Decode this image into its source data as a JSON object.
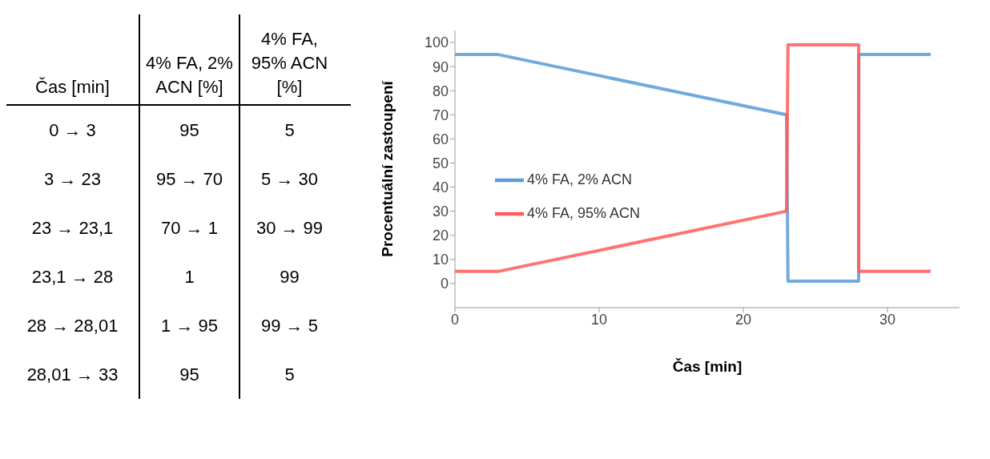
{
  "chart_data": {
    "type": "line",
    "xlabel": "Čas [min]",
    "ylabel": "Procentuální zastoupení",
    "x": [
      0,
      3,
      23,
      23.1,
      28,
      28.01,
      33
    ],
    "series": [
      {
        "name": "4% FA, 2% ACN",
        "color": "#5b9bd5",
        "values": [
          95,
          95,
          70,
          1,
          1,
          95,
          95
        ]
      },
      {
        "name": "4% FA, 95% ACN",
        "color": "#ff5b5b",
        "values": [
          5,
          5,
          30,
          99,
          99,
          5,
          5
        ]
      }
    ],
    "xlim": [
      0,
      35
    ],
    "xticks": [
      0,
      10,
      20,
      30
    ],
    "ylim": [
      -10,
      105
    ],
    "yticks": [
      0,
      10,
      20,
      30,
      40,
      50,
      60,
      70,
      80,
      90,
      100
    ],
    "legend": "left",
    "line_style": "solid",
    "annotations": [
      "Čas [min]",
      "4% FA, 2% ACN [%]",
      "4% FA, 95% ACN [%]",
      "0 → 3",
      "95",
      "5",
      "3 → 23",
      "95 → 70",
      "5 → 30",
      "23 → 23,1",
      "70 → 1",
      "30 → 99",
      "23,1 → 28",
      "1",
      "99",
      "28 → 28,01",
      "1 → 95",
      "99 → 5",
      "28,01 → 33",
      "95",
      "5"
    ]
  }
}
